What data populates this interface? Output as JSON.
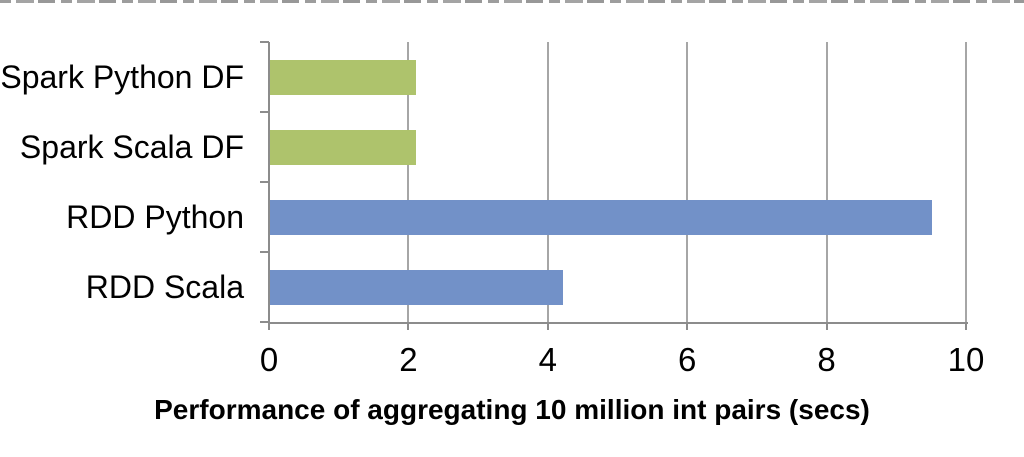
{
  "chart_data": {
    "type": "bar",
    "orientation": "horizontal",
    "title": "Performance of aggregating 10 million int pairs (secs)",
    "categories": [
      "Spark Python DF",
      "Spark Scala DF",
      "RDD Python",
      "RDD Scala"
    ],
    "values": [
      2.1,
      2.1,
      9.5,
      4.2
    ],
    "bar_colors": [
      "#aec36c",
      "#aec36c",
      "#7291c8",
      "#7291c8"
    ],
    "xlim": [
      0,
      10
    ],
    "xticks": [
      0,
      2,
      4,
      6,
      8,
      10
    ],
    "grid": true,
    "legend_position": "none",
    "xlabel": "",
    "ylabel": ""
  },
  "colors": {
    "green_series": "#aec36c",
    "blue_series": "#7291c8",
    "gridline": "#a6a6a6",
    "axis": "#8c8c8c",
    "text": "#000000",
    "background": "#ffffff"
  }
}
